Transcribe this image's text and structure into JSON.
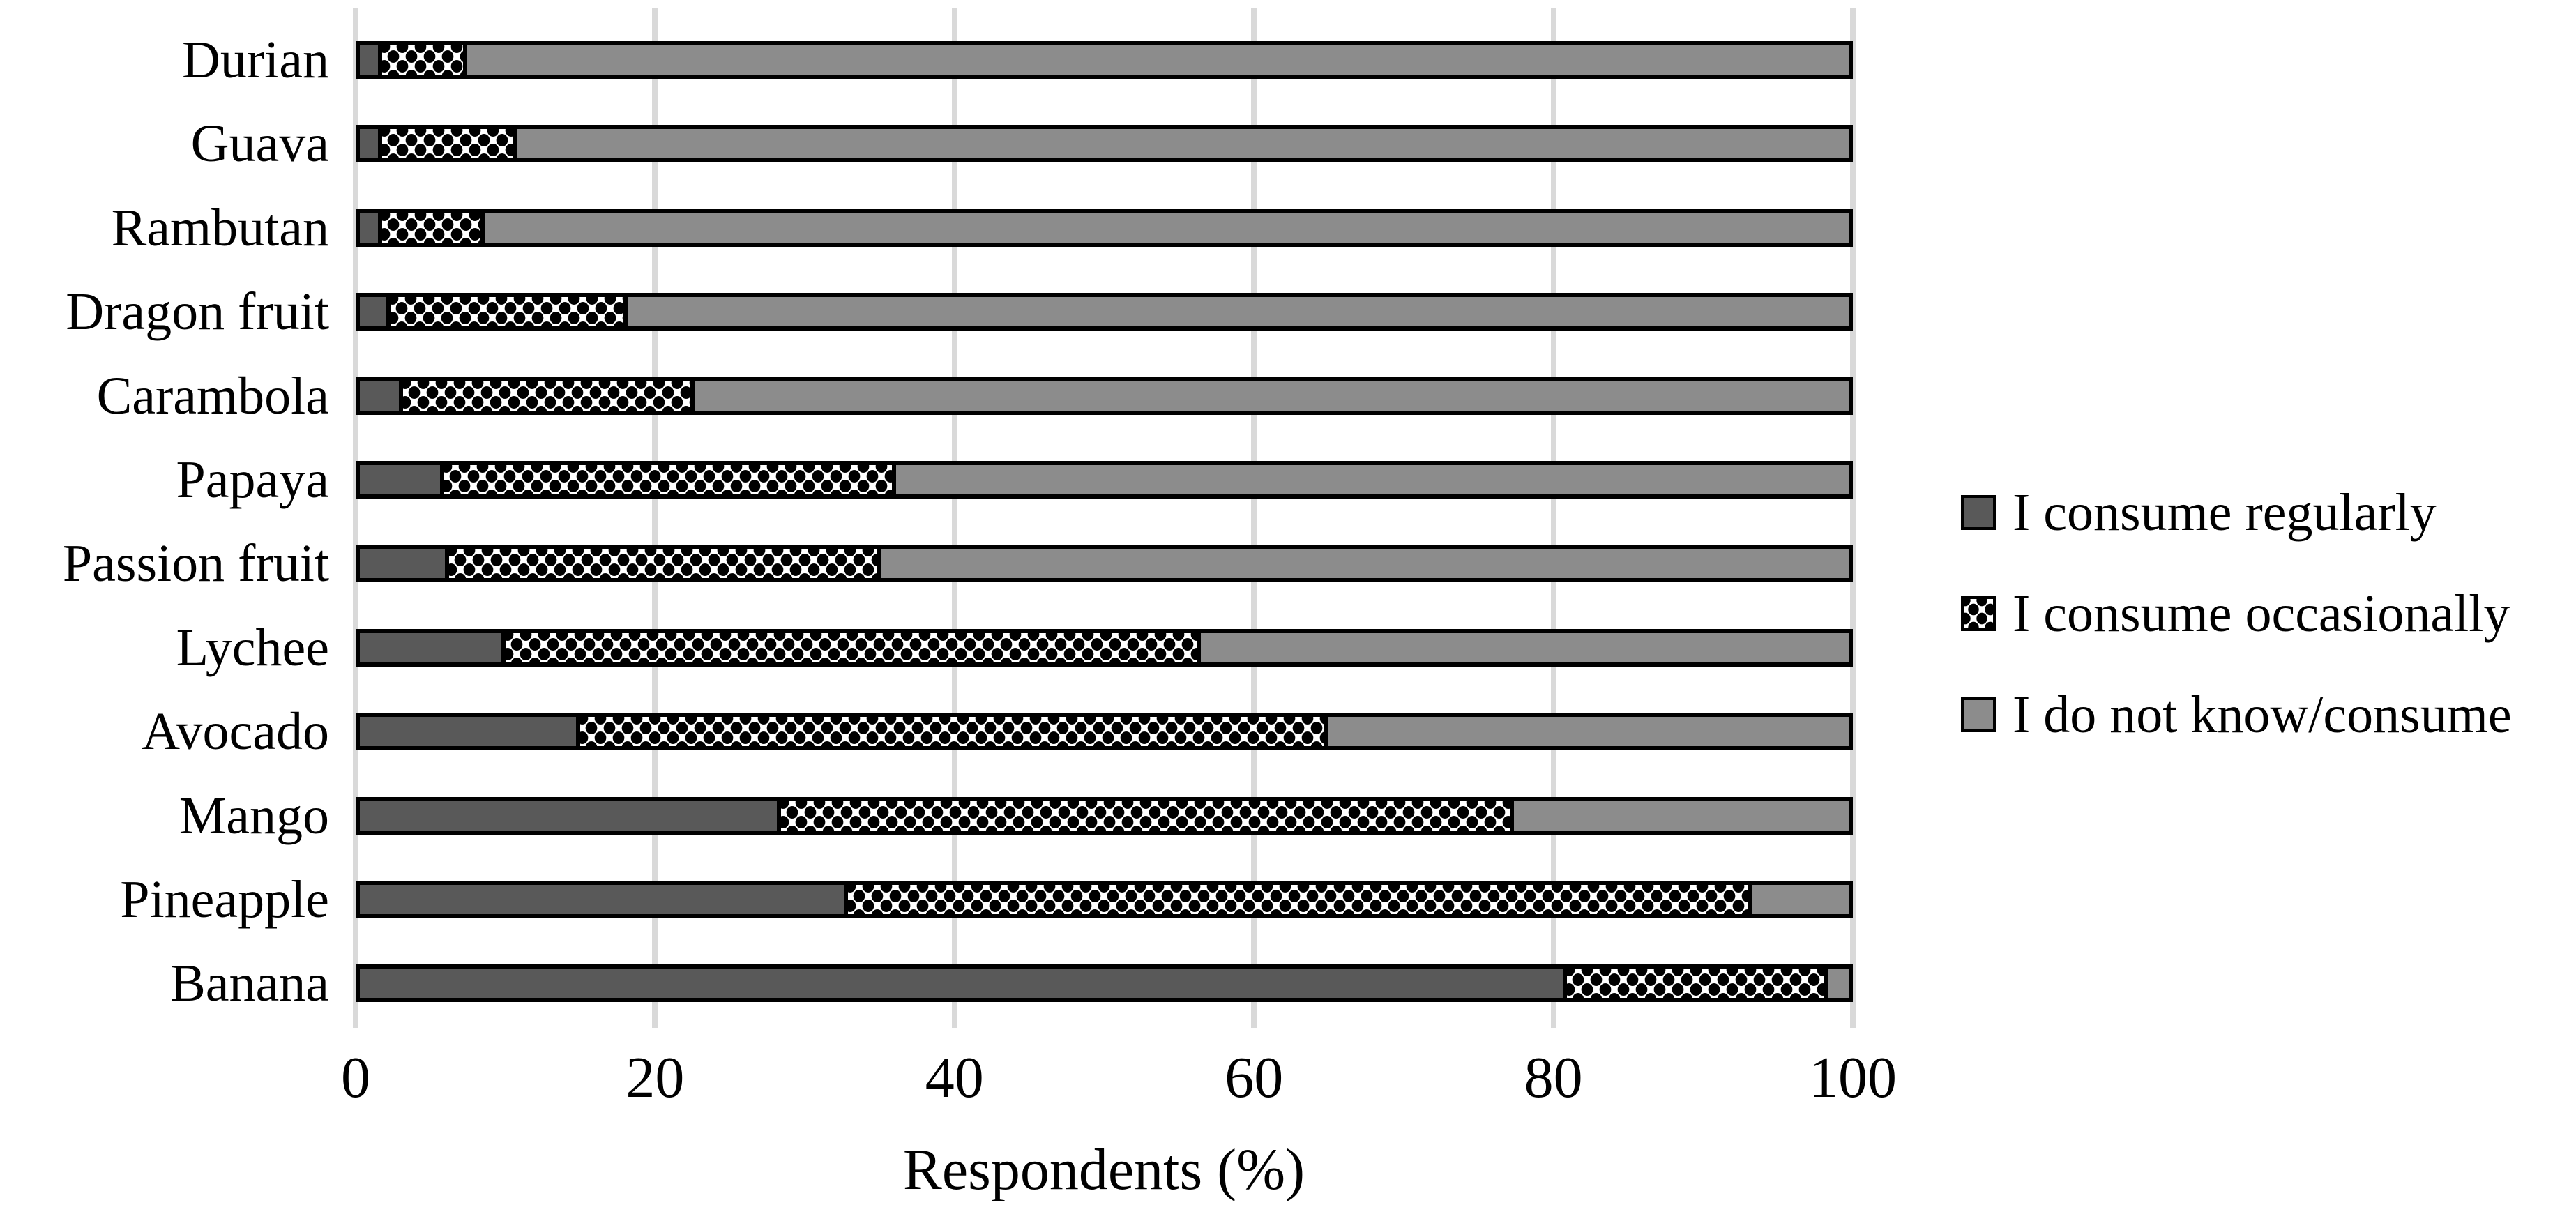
{
  "chart_data": {
    "type": "bar",
    "orientation": "horizontal",
    "stacked": true,
    "title": "",
    "xlabel": "Respondents (%)",
    "ylabel": "",
    "xlim": [
      0,
      100
    ],
    "xticks": [
      0,
      20,
      40,
      60,
      80,
      100
    ],
    "grid": "vertical-light-gray",
    "legend_position": "right",
    "categories": [
      "Durian",
      "Guava",
      "Rambutan",
      "Dragon fruit",
      "Carambola",
      "Papaya",
      "Passion fruit",
      "Lychee",
      "Avocado",
      "Mango",
      "Pineapple",
      "Banana"
    ],
    "series": [
      {
        "name": "I consume regularly",
        "pattern": "solid-dark-gray",
        "color": "#595959",
        "values": [
          1.2,
          1.2,
          1.2,
          1.8,
          2.6,
          5.4,
          5.7,
          9.5,
          14.5,
          28.0,
          32.5,
          80.8
        ]
      },
      {
        "name": "I consume occasionally",
        "pattern": "black-dots-on-white",
        "color": "#FFFFFF",
        "values": [
          6.0,
          9.4,
          7.2,
          16.2,
          19.9,
          30.6,
          29.3,
          47.0,
          50.5,
          49.5,
          61.0,
          17.8
        ]
      },
      {
        "name": "I do not know/consume",
        "pattern": "solid-medium-gray",
        "color": "#8C8C8C",
        "values": [
          92.8,
          89.4,
          91.6,
          82.0,
          77.5,
          64.0,
          65.0,
          43.5,
          35.0,
          22.5,
          6.5,
          1.4
        ]
      }
    ]
  },
  "axis": {
    "x_title": "Respondents (%)",
    "tick_labels": [
      "0",
      "20",
      "40",
      "60",
      "80",
      "100"
    ]
  },
  "legend": {
    "items": [
      "I consume regularly",
      "I consume occasionally",
      "I do not know/consume"
    ]
  },
  "colors": {
    "regular": "#595959",
    "unknown": "#8C8C8C",
    "gridline": "#D9D9D9",
    "border": "#000000",
    "background": "#FFFFFF",
    "text": "#000000"
  }
}
